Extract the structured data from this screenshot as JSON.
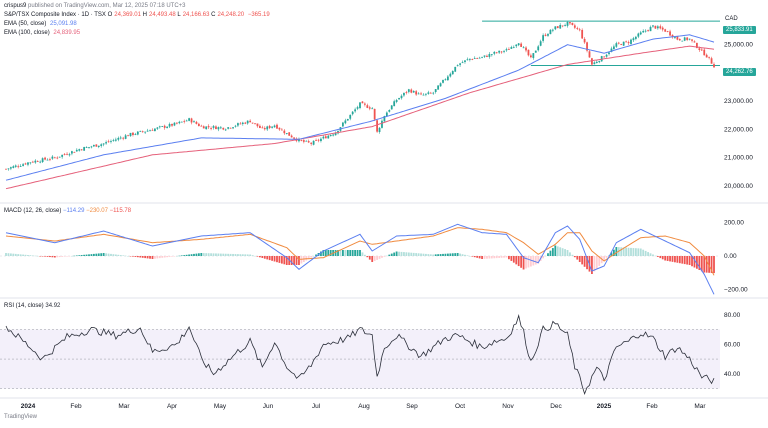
{
  "header": {
    "user": "crispus9",
    "published": "published on TradingView.com, Mar 12, 2025 07:18 UTC+3",
    "symbol": "S&P/TSX Composite Index · 1D · TSX",
    "ohlc": {
      "o_label": "O",
      "o": "24,369.01",
      "h_label": "H",
      "h": "24,493.48",
      "l_label": "L",
      "l": "24,166.63",
      "c_label": "C",
      "c": "24,248.20",
      "chg": "−365.19"
    },
    "ema50": {
      "label": "EMA (50, close)",
      "value": "25,091.98"
    },
    "ema100": {
      "label": "EMA (100, close)",
      "value": "24,839.95"
    }
  },
  "currency": "CAD",
  "footer": "TradingView",
  "price_tags": {
    "resistance": "25,833.91",
    "support": "24,262.76"
  },
  "macd_label": {
    "name": "MACD (12, 26, close)",
    "v1": "−114.29",
    "v2": "−230.07",
    "v3": "−115.78"
  },
  "rsi_label": {
    "name": "RSI (14, close)",
    "value": "34.92"
  },
  "colors": {
    "up": "#26a69a",
    "down": "#ef5350",
    "ema50": "#5b7ff0",
    "ema100": "#e5607a",
    "macd": "#5b7ff0",
    "signal": "#f08a3e",
    "rsi": "#2a2e39",
    "level": "#26a69a"
  },
  "chart_data": [
    {
      "type": "candlestick",
      "title": "S&P/TSX Composite Index",
      "ylim": [
        19500,
        26300
      ],
      "y_ticks": [
        20000,
        21000,
        22000,
        23000,
        24000,
        25000
      ],
      "x_ticks": [
        "2024",
        "Feb",
        "Mar",
        "Apr",
        "May",
        "Jun",
        "Jul",
        "Aug",
        "Sep",
        "Oct",
        "Nov",
        "Dec",
        "2025",
        "Feb",
        "Mar"
      ],
      "close_anchors": [
        [
          0,
          20600
        ],
        [
          10,
          20850
        ],
        [
          20,
          21000
        ],
        [
          30,
          21300
        ],
        [
          40,
          21500
        ],
        [
          50,
          21800
        ],
        [
          60,
          22000
        ],
        [
          70,
          22200
        ],
        [
          75,
          22350
        ],
        [
          80,
          22100
        ],
        [
          90,
          22050
        ],
        [
          100,
          22300
        ],
        [
          105,
          22000
        ],
        [
          110,
          22150
        ],
        [
          115,
          21850
        ],
        [
          120,
          21600
        ],
        [
          125,
          21500
        ],
        [
          130,
          21700
        ],
        [
          135,
          21900
        ],
        [
          140,
          22400
        ],
        [
          145,
          22900
        ],
        [
          150,
          22750
        ],
        [
          152,
          21900
        ],
        [
          155,
          22500
        ],
        [
          160,
          23050
        ],
        [
          165,
          23400
        ],
        [
          170,
          23200
        ],
        [
          175,
          23300
        ],
        [
          180,
          23800
        ],
        [
          185,
          24300
        ],
        [
          190,
          24500
        ],
        [
          195,
          24550
        ],
        [
          200,
          24700
        ],
        [
          205,
          24800
        ],
        [
          210,
          25100
        ],
        [
          215,
          24500
        ],
        [
          220,
          25300
        ],
        [
          225,
          25600
        ],
        [
          230,
          25750
        ],
        [
          235,
          25500
        ],
        [
          238,
          24800
        ],
        [
          240,
          24300
        ],
        [
          245,
          24600
        ],
        [
          250,
          25000
        ],
        [
          255,
          25100
        ],
        [
          260,
          25400
        ],
        [
          265,
          25650
        ],
        [
          270,
          25500
        ],
        [
          275,
          25200
        ],
        [
          280,
          25200
        ],
        [
          284,
          24850
        ],
        [
          287,
          24600
        ],
        [
          290,
          24250
        ]
      ],
      "ema50_anchors": [
        [
          0,
          20200
        ],
        [
          40,
          21100
        ],
        [
          80,
          21700
        ],
        [
          120,
          21650
        ],
        [
          150,
          22300
        ],
        [
          180,
          23100
        ],
        [
          210,
          24100
        ],
        [
          230,
          25000
        ],
        [
          245,
          24700
        ],
        [
          265,
          25200
        ],
        [
          280,
          25350
        ],
        [
          290,
          25092
        ]
      ],
      "ema100_anchors": [
        [
          0,
          19900
        ],
        [
          60,
          21100
        ],
        [
          110,
          21500
        ],
        [
          150,
          22100
        ],
        [
          190,
          23300
        ],
        [
          230,
          24300
        ],
        [
          260,
          24700
        ],
        [
          280,
          24950
        ],
        [
          290,
          24840
        ]
      ],
      "horizontal_levels": [
        {
          "value": 25833.91,
          "from": 195,
          "to": 290
        },
        {
          "value": 24262.76,
          "from": 215,
          "to": 290
        }
      ]
    },
    {
      "type": "macd",
      "ylim": [
        -240,
        300
      ],
      "y_ticks": [
        200,
        0,
        -200
      ],
      "series": [
        {
          "name": "MACD",
          "anchors": [
            [
              0,
              140
            ],
            [
              20,
              80
            ],
            [
              40,
              150
            ],
            [
              60,
              60
            ],
            [
              80,
              120
            ],
            [
              100,
              140
            ],
            [
              115,
              -10
            ],
            [
              120,
              -80
            ],
            [
              130,
              30
            ],
            [
              145,
              130
            ],
            [
              150,
              30
            ],
            [
              160,
              120
            ],
            [
              175,
              130
            ],
            [
              185,
              190
            ],
            [
              195,
              140
            ],
            [
              205,
              130
            ],
            [
              212,
              -10
            ],
            [
              218,
              -40
            ],
            [
              225,
              140
            ],
            [
              230,
              180
            ],
            [
              235,
              100
            ],
            [
              240,
              -90
            ],
            [
              245,
              -60
            ],
            [
              250,
              80
            ],
            [
              260,
              160
            ],
            [
              270,
              90
            ],
            [
              280,
              20
            ],
            [
              286,
              -110
            ],
            [
              290,
              -230
            ]
          ]
        },
        {
          "name": "Signal",
          "anchors": [
            [
              0,
              120
            ],
            [
              20,
              90
            ],
            [
              40,
              130
            ],
            [
              60,
              80
            ],
            [
              80,
              100
            ],
            [
              100,
              130
            ],
            [
              115,
              50
            ],
            [
              120,
              -20
            ],
            [
              130,
              -10
            ],
            [
              145,
              90
            ],
            [
              150,
              70
            ],
            [
              160,
              90
            ],
            [
              175,
              120
            ],
            [
              185,
              170
            ],
            [
              195,
              160
            ],
            [
              205,
              140
            ],
            [
              212,
              80
            ],
            [
              218,
              10
            ],
            [
              225,
              70
            ],
            [
              230,
              140
            ],
            [
              235,
              140
            ],
            [
              240,
              30
            ],
            [
              245,
              -30
            ],
            [
              250,
              20
            ],
            [
              260,
              110
            ],
            [
              270,
              120
            ],
            [
              280,
              80
            ],
            [
              286,
              0
            ],
            [
              290,
              -116
            ]
          ]
        }
      ]
    },
    {
      "type": "line",
      "name": "RSI",
      "ylim": [
        25,
        90
      ],
      "y_ticks": [
        80,
        60,
        40
      ],
      "bands": [
        70,
        50,
        30
      ],
      "anchors": [
        [
          0,
          72
        ],
        [
          10,
          58
        ],
        [
          15,
          50
        ],
        [
          25,
          65
        ],
        [
          35,
          70
        ],
        [
          45,
          66
        ],
        [
          55,
          71
        ],
        [
          60,
          55
        ],
        [
          70,
          60
        ],
        [
          75,
          72
        ],
        [
          80,
          50
        ],
        [
          85,
          40
        ],
        [
          95,
          55
        ],
        [
          100,
          62
        ],
        [
          105,
          44
        ],
        [
          110,
          62
        ],
        [
          115,
          45
        ],
        [
          120,
          36
        ],
        [
          125,
          46
        ],
        [
          130,
          60
        ],
        [
          140,
          64
        ],
        [
          145,
          70
        ],
        [
          150,
          66
        ],
        [
          152,
          38
        ],
        [
          155,
          58
        ],
        [
          160,
          66
        ],
        [
          170,
          52
        ],
        [
          175,
          58
        ],
        [
          180,
          64
        ],
        [
          185,
          66
        ],
        [
          190,
          62
        ],
        [
          195,
          58
        ],
        [
          200,
          62
        ],
        [
          205,
          64
        ],
        [
          210,
          78
        ],
        [
          212,
          68
        ],
        [
          215,
          48
        ],
        [
          220,
          70
        ],
        [
          225,
          74
        ],
        [
          230,
          66
        ],
        [
          233,
          45
        ],
        [
          237,
          28
        ],
        [
          242,
          44
        ],
        [
          245,
          36
        ],
        [
          250,
          58
        ],
        [
          255,
          62
        ],
        [
          260,
          68
        ],
        [
          265,
          64
        ],
        [
          270,
          52
        ],
        [
          275,
          58
        ],
        [
          280,
          50
        ],
        [
          285,
          38
        ],
        [
          290,
          35
        ]
      ]
    }
  ]
}
